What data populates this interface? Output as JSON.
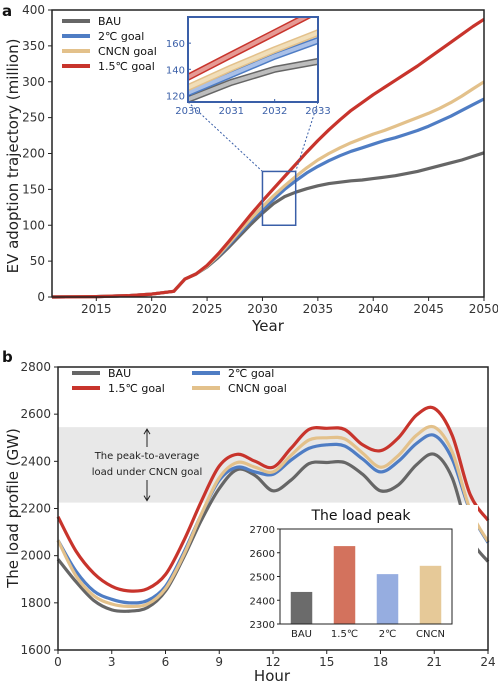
{
  "chart_data": [
    {
      "panel": "a",
      "type": "line",
      "xlabel": "Year",
      "ylabel": "EV adoption trajectory (million)",
      "xlim": [
        2011,
        2050
      ],
      "ylim": [
        0,
        400
      ],
      "xticks": [
        2015,
        2020,
        2025,
        2030,
        2035,
        2040,
        2045,
        2050
      ],
      "yticks": [
        0,
        50,
        100,
        150,
        200,
        250,
        300,
        350,
        400
      ],
      "legend_position": "top-left",
      "grid": false,
      "x": [
        2011,
        2015,
        2018,
        2020,
        2021,
        2022,
        2023,
        2024,
        2025,
        2026,
        2027,
        2028,
        2029,
        2030,
        2031,
        2032,
        2033,
        2034,
        2035,
        2036,
        2037,
        2038,
        2039,
        2040,
        2041,
        2042,
        2043,
        2044,
        2045,
        2046,
        2047,
        2048,
        2049,
        2050
      ],
      "series": [
        {
          "name": "BAU",
          "color": "#666666",
          "values": [
            0,
            0.5,
            2,
            4,
            6,
            8,
            25,
            32,
            42,
            55,
            70,
            86,
            102,
            117,
            130,
            140,
            146,
            151,
            155,
            158,
            160,
            162,
            163,
            165,
            167,
            169,
            172,
            175,
            179,
            183,
            187,
            191,
            196,
            201
          ]
        },
        {
          "name": "2℃ goal",
          "color": "#4f7dc4",
          "values": [
            0,
            0.5,
            2,
            4,
            6,
            8,
            25,
            32,
            43,
            57,
            73,
            90,
            107,
            122,
            136,
            150,
            162,
            173,
            182,
            190,
            197,
            203,
            208,
            213,
            218,
            222,
            227,
            232,
            238,
            245,
            252,
            260,
            268,
            276
          ]
        },
        {
          "name": "CNCN goal",
          "color": "#e3c18b",
          "values": [
            0,
            0.5,
            2,
            4,
            6,
            8,
            25,
            32,
            43,
            58,
            75,
            93,
            110,
            126,
            141,
            155,
            168,
            180,
            191,
            200,
            208,
            215,
            221,
            227,
            232,
            238,
            244,
            250,
            256,
            263,
            271,
            280,
            290,
            300
          ]
        },
        {
          "name": "1.5℃ goal",
          "color": "#c8342c",
          "values": [
            0,
            0.5,
            2,
            4,
            6,
            8,
            25,
            32,
            44,
            60,
            78,
            97,
            116,
            134,
            151,
            168,
            185,
            202,
            218,
            233,
            247,
            260,
            271,
            282,
            292,
            302,
            312,
            322,
            333,
            344,
            355,
            366,
            377,
            387
          ]
        }
      ],
      "inset": {
        "type": "line",
        "xlim": [
          2030,
          2033
        ],
        "ylim": [
          115,
          180
        ],
        "xticks": [
          2030,
          2031,
          2032,
          2033
        ],
        "yticks": [
          120,
          140,
          160
        ],
        "zoom_box": {
          "xlim": [
            2030,
            2033
          ],
          "ylim": [
            100,
            175
          ]
        }
      }
    },
    {
      "panel": "b",
      "type": "line",
      "xlabel": "Hour",
      "ylabel": "The load profile (GW)",
      "xlim": [
        0,
        24
      ],
      "ylim": [
        1600,
        2800
      ],
      "xticks": [
        0,
        3,
        6,
        9,
        12,
        15,
        18,
        21,
        24
      ],
      "yticks": [
        1600,
        1800,
        2000,
        2200,
        2400,
        2600,
        2800
      ],
      "legend_position": "top",
      "grid": false,
      "shaded_band": {
        "ylim": [
          2225,
          2545
        ],
        "label_line1": "The peak-to-average",
        "label_line2": "load under CNCN goal"
      },
      "x": [
        0,
        1,
        2,
        3,
        4,
        5,
        6,
        7,
        8,
        9,
        10,
        11,
        12,
        13,
        14,
        15,
        16,
        17,
        18,
        19,
        20,
        21,
        22,
        23,
        24
      ],
      "series": [
        {
          "name": "BAU",
          "color": "#666666",
          "values": [
            1985,
            1890,
            1810,
            1770,
            1765,
            1780,
            1850,
            1990,
            2150,
            2285,
            2365,
            2340,
            2275,
            2320,
            2390,
            2395,
            2395,
            2345,
            2275,
            2300,
            2385,
            2430,
            2330,
            2080,
            1975
          ]
        },
        {
          "name": "1.5℃ goal",
          "color": "#c8342c",
          "values": [
            2165,
            2020,
            1925,
            1870,
            1850,
            1860,
            1920,
            2060,
            2230,
            2380,
            2430,
            2400,
            2375,
            2455,
            2535,
            2540,
            2535,
            2470,
            2445,
            2500,
            2595,
            2625,
            2510,
            2260,
            2150
          ]
        },
        {
          "name": "2℃ goal",
          "color": "#4f7dc4",
          "values": [
            2065,
            1935,
            1850,
            1815,
            1800,
            1810,
            1870,
            2010,
            2175,
            2320,
            2375,
            2355,
            2345,
            2405,
            2455,
            2470,
            2465,
            2410,
            2355,
            2400,
            2475,
            2510,
            2410,
            2190,
            2055
          ]
        },
        {
          "name": "CNCN goal",
          "color": "#e3c18b",
          "values": [
            2065,
            1915,
            1830,
            1795,
            1785,
            1795,
            1860,
            2000,
            2175,
            2330,
            2395,
            2375,
            2355,
            2425,
            2490,
            2500,
            2495,
            2435,
            2375,
            2425,
            2510,
            2545,
            2440,
            2195,
            2060
          ]
        }
      ],
      "inset": {
        "type": "bar",
        "title": "The load peak",
        "categories": [
          "BAU",
          "1.5℃",
          "2℃",
          "CNCN"
        ],
        "values": [
          2435,
          2628,
          2510,
          2545
        ],
        "colors": [
          "#6b6b6b",
          "#d3725d",
          "#96ade0",
          "#e6c998"
        ],
        "ylim": [
          2300,
          2700
        ],
        "yticks": [
          2300,
          2400,
          2500,
          2600,
          2700
        ]
      }
    }
  ],
  "labels": {
    "panel_a": "a",
    "panel_b": "b"
  }
}
